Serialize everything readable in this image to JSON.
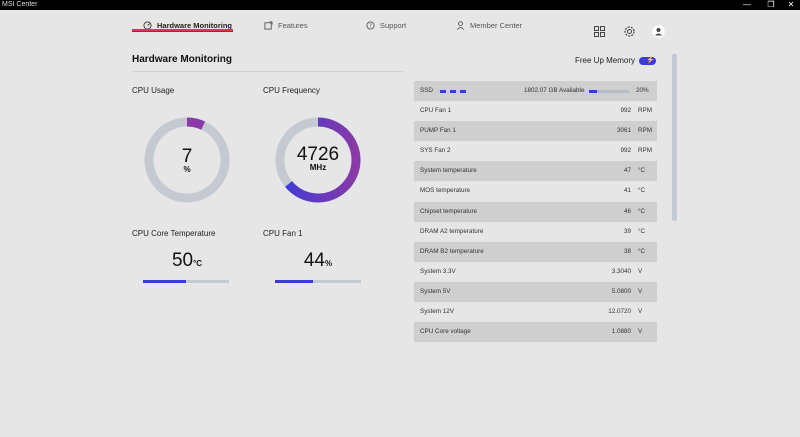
{
  "window": {
    "title": "MSI Center",
    "minimize": "—",
    "maximize": "❐",
    "close": "✕"
  },
  "nav": {
    "tabs": [
      {
        "label": "Hardware Monitoring",
        "icon": "speedometer-icon",
        "active": true
      },
      {
        "label": "Features",
        "icon": "feature-box-icon"
      },
      {
        "label": "Support",
        "icon": "chat-question-icon"
      },
      {
        "label": "Member Center",
        "icon": "person-icon"
      }
    ],
    "icons": [
      "grid-icon",
      "gear-icon",
      "avatar-icon"
    ]
  },
  "page": {
    "title": "Hardware Monitoring",
    "free_memory_label": "Free Up Memory"
  },
  "widgets": {
    "cpu_usage": {
      "label": "CPU Usage",
      "value": "7",
      "unit": "%",
      "fraction": 0.07
    },
    "cpu_frequency": {
      "label": "CPU Frequency",
      "value": "4726",
      "unit": "MHz",
      "fraction": 0.64
    },
    "cpu_core_temp": {
      "label": "CPU Core Temperature",
      "value": "50",
      "unit": "°C",
      "fraction": 0.5
    },
    "cpu_fan1": {
      "label": "CPU Fan 1",
      "value": "44",
      "unit": "%",
      "fraction": 0.44
    }
  },
  "ssd": {
    "label": "SSD",
    "available": "1802.07 GB Available",
    "percent": "20%",
    "fraction": 0.2
  },
  "sensors": [
    {
      "label": "CPU Fan 1",
      "value": "992",
      "unit": "RPM"
    },
    {
      "label": "PUMP Fan 1",
      "value": "3061",
      "unit": "RPM"
    },
    {
      "label": "SYS Fan 2",
      "value": "992",
      "unit": "RPM"
    },
    {
      "label": "System temperature",
      "value": "47",
      "unit": "°C"
    },
    {
      "label": "MOS temperature",
      "value": "41",
      "unit": "°C"
    },
    {
      "label": "Chipset temperature",
      "value": "46",
      "unit": "°C"
    },
    {
      "label": "DRAM A2 temperature",
      "value": "39",
      "unit": "°C"
    },
    {
      "label": "DRAM B2 temperature",
      "value": "38",
      "unit": "°C"
    },
    {
      "label": "System 3.3V",
      "value": "3.3040",
      "unit": "V"
    },
    {
      "label": "System 5V",
      "value": "5.0800",
      "unit": "V"
    },
    {
      "label": "System 12V",
      "value": "12.0720",
      "unit": "V"
    },
    {
      "label": "CPU Core voltage",
      "value": "1.0880",
      "unit": "V"
    }
  ],
  "colors": {
    "accent": "#3b3bd6",
    "purple": "#8a3aa8",
    "tab_underline": "#e8324c",
    "gauge_track": "#c5c9d2"
  }
}
